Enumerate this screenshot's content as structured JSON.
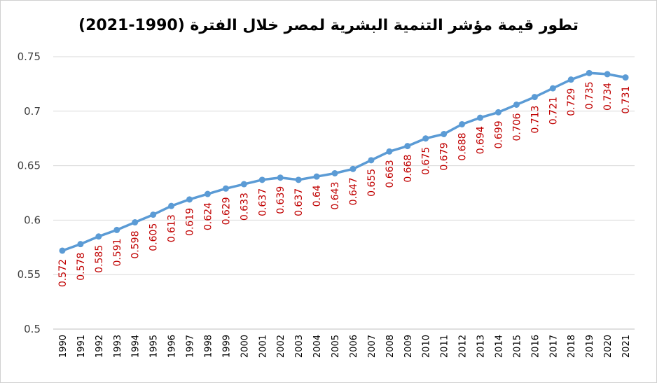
{
  "chart_data": {
    "type": "line",
    "title": "تطور قيمة مؤشر التنمية البشرية لمصر خلال الفترة (1990-2021)",
    "xlabel": "",
    "ylabel": "",
    "ylim": [
      0.5,
      0.75
    ],
    "y_ticks": [
      "0.5",
      "0.55",
      "0.6",
      "0.65",
      "0.7",
      "0.75"
    ],
    "grid": true,
    "legend": "none",
    "series_color": "#5B9BD5",
    "label_color": "#C00000",
    "gridline_color": "#d9d9d9",
    "categories": [
      "1990",
      "1991",
      "1992",
      "1993",
      "1994",
      "1995",
      "1996",
      "1997",
      "1998",
      "1999",
      "2000",
      "2001",
      "2002",
      "2003",
      "2004",
      "2005",
      "2006",
      "2007",
      "2008",
      "2009",
      "2010",
      "2011",
      "2012",
      "2013",
      "2014",
      "2015",
      "2016",
      "2017",
      "2018",
      "2019",
      "2020",
      "2021"
    ],
    "series": [
      {
        "values": [
          0.572,
          0.578,
          0.585,
          0.591,
          0.598,
          0.605,
          0.613,
          0.619,
          0.624,
          0.629,
          0.633,
          0.637,
          0.639,
          0.637,
          0.64,
          0.643,
          0.647,
          0.655,
          0.663,
          0.668,
          0.675,
          0.679,
          0.688,
          0.694,
          0.699,
          0.706,
          0.713,
          0.721,
          0.729,
          0.735,
          0.734,
          0.731
        ],
        "data_labels": [
          "0.572",
          "0.578",
          "0.585",
          "0.591",
          "0.598",
          "0.605",
          "0.613",
          "0.619",
          "0.624",
          "0.629",
          "0.633",
          "0.637",
          "0.639",
          "0.637",
          "0.64",
          "0.643",
          "0.647",
          "0.655",
          "0.663",
          "0.668",
          "0.675",
          "0.679",
          "0.688",
          "0.694",
          "0.699",
          "0.706",
          "0.713",
          "0.721",
          "0.729",
          "0.735",
          "0.734",
          "0.731"
        ]
      }
    ]
  }
}
